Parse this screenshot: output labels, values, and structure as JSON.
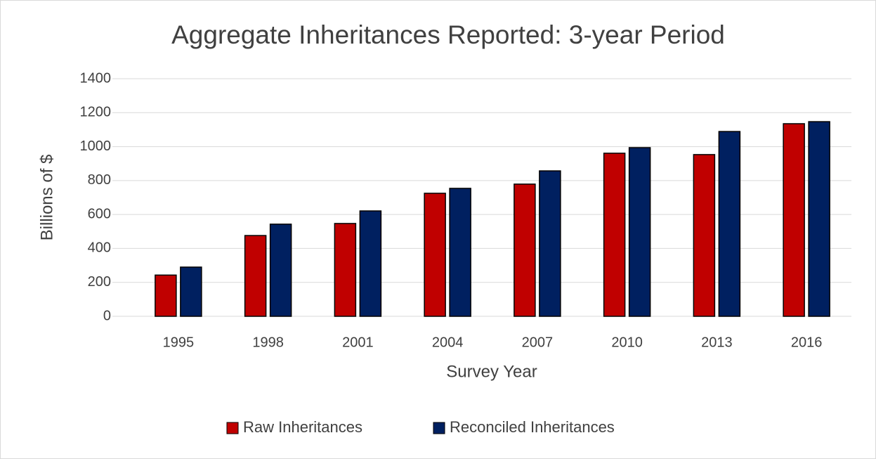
{
  "chart_data": {
    "type": "bar",
    "title": "Aggregate Inheritances Reported: 3-year Period",
    "x_label": "Survey Year",
    "y_label": "Billions of $",
    "categories": [
      "1995",
      "1998",
      "2001",
      "2004",
      "2007",
      "2010",
      "2013",
      "2016"
    ],
    "series": [
      {
        "name": "Raw Inheritances",
        "color": "#c00000",
        "values": [
          243,
          476,
          547,
          725,
          779,
          961,
          953,
          1135
        ]
      },
      {
        "name": "Reconciled Inheritances",
        "color": "#002060",
        "values": [
          290,
          543,
          621,
          754,
          857,
          994,
          1089,
          1147
        ]
      }
    ],
    "ylim": [
      0,
      1400
    ],
    "yticks": [
      0,
      200,
      400,
      600,
      800,
      1000,
      1200,
      1400
    ],
    "grid": true,
    "legend": "bottom"
  }
}
